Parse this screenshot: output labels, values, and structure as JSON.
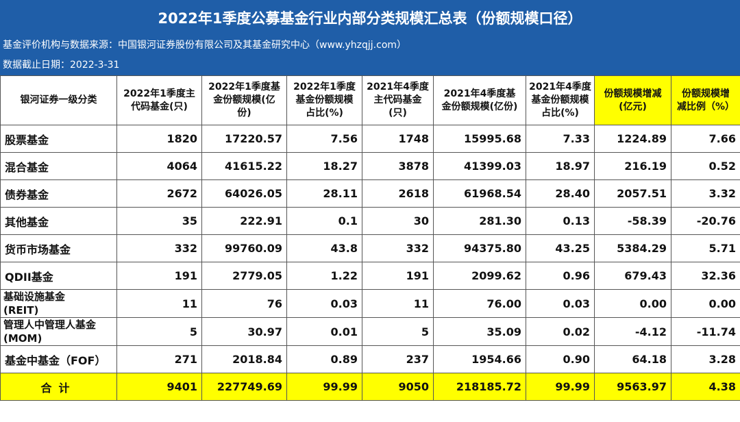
{
  "title": "2022年1季度公募基金行业内部分类规模汇总表（份额规模口径）",
  "source_line": "基金评价机构与数据来源：中国银河证券股份有限公司及其基金研究中心（www.yhzqjj.com）",
  "date_line": "数据截止日期：2022-3-31",
  "headers": {
    "c0": "银河证券一级分类",
    "c1a": "2022年1季度主",
    "c1b": "代码基金(只)",
    "c2a": "2022年1季度基",
    "c2b": "金份额规模(亿",
    "c2c": "份)",
    "c3a": "2022年1季度",
    "c3b": "基金份额规模",
    "c3c": "占比(%)",
    "c4a": "2021年4季度",
    "c4b": "主代码基金",
    "c4c": "(只)",
    "c5a": "2021年4季度基",
    "c5b": "金份额规模(亿份)",
    "c6a": "2021年4季度",
    "c6b": "基金份额规模",
    "c6c": "占比(%)",
    "c7a": "份额规模增减",
    "c7b": "(亿元)",
    "c8a": "份额规模增",
    "c8b": "减比例（%）"
  },
  "rows": [
    {
      "name": "股票基金",
      "n1": "1820",
      "s1": "17220.57",
      "p1": "7.56",
      "n2": "1748",
      "s2": "15995.68",
      "p2": "7.33",
      "d": "1224.89",
      "r": "7.66"
    },
    {
      "name": "混合基金",
      "n1": "4064",
      "s1": "41615.22",
      "p1": "18.27",
      "n2": "3878",
      "s2": "41399.03",
      "p2": "18.97",
      "d": "216.19",
      "r": "0.52"
    },
    {
      "name": "债券基金",
      "n1": "2672",
      "s1": "64026.05",
      "p1": "28.11",
      "n2": "2618",
      "s2": "61968.54",
      "p2": "28.40",
      "d": "2057.51",
      "r": "3.32"
    },
    {
      "name": "其他基金",
      "n1": "35",
      "s1": "222.91",
      "p1": "0.1",
      "n2": "30",
      "s2": "281.30",
      "p2": "0.13",
      "d": "-58.39",
      "r": "-20.76"
    },
    {
      "name": "货币市场基金",
      "n1": "332",
      "s1": "99760.09",
      "p1": "43.8",
      "n2": "332",
      "s2": "94375.80",
      "p2": "43.25",
      "d": "5384.29",
      "r": "5.71"
    },
    {
      "name": "QDII基金",
      "n1": "191",
      "s1": "2779.05",
      "p1": "1.22",
      "n2": "191",
      "s2": "2099.62",
      "p2": "0.96",
      "d": "679.43",
      "r": "32.36"
    },
    {
      "name_a": "基础设施基金",
      "name_b": "(REIT)",
      "n1": "11",
      "s1": "76",
      "p1": "0.03",
      "n2": "11",
      "s2": "76.00",
      "p2": "0.03",
      "d": "0.00",
      "r": "0.00"
    },
    {
      "name_a": "管理人中管理人基金",
      "name_b": "(MOM)",
      "n1": "5",
      "s1": "30.97",
      "p1": "0.01",
      "n2": "5",
      "s2": "35.09",
      "p2": "0.02",
      "d": "-4.12",
      "r": "-11.74"
    },
    {
      "name": "基金中基金（FOF）",
      "n1": "271",
      "s1": "2018.84",
      "p1": "0.89",
      "n2": "237",
      "s2": "1954.66",
      "p2": "0.90",
      "d": "64.18",
      "r": "3.28"
    }
  ],
  "total": {
    "name": "合计",
    "n1": "9401",
    "s1": "227749.69",
    "p1": "99.99",
    "n2": "9050",
    "s2": "218185.72",
    "p2": "99.99",
    "d": "9563.97",
    "r": "4.38"
  },
  "colors": {
    "header_bg": "#1f5ea8",
    "highlight": "#ffff00"
  }
}
